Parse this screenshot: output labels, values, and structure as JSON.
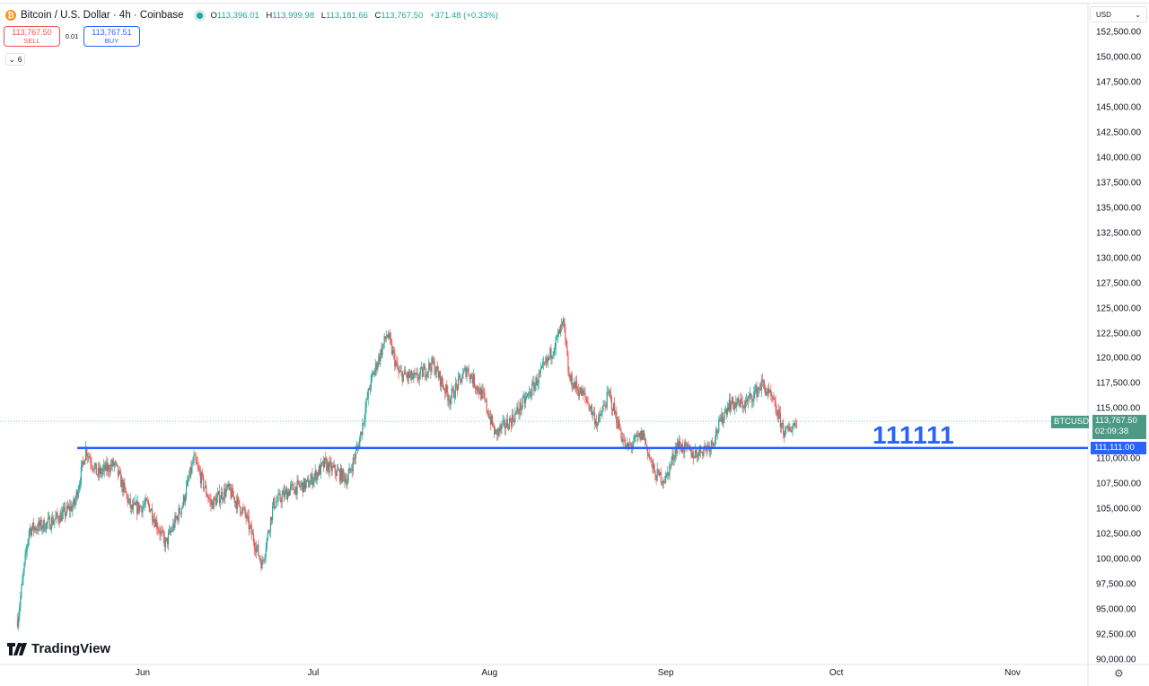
{
  "header": {
    "coin_icon": "bitcoin-icon",
    "symbol_title": "Bitcoin / U.S. Dollar · 4h · Coinbase",
    "ohlc": {
      "o_label": "O",
      "o": "113,396.01",
      "h_label": "H",
      "h": "113,999.98",
      "l_label": "L",
      "l": "113,181.66",
      "c_label": "C",
      "c": "113,767.50",
      "change": "+371.48 (+0.33%)"
    }
  },
  "trade": {
    "sell_price": "113,767.50",
    "sell_label": "SELL",
    "spread": "0.01",
    "buy_price": "113,767.51",
    "buy_label": "BUY"
  },
  "indicators_toggle": {
    "count": "6"
  },
  "currency": {
    "label": "USD"
  },
  "price_tag": {
    "symbol": "BTCUSD",
    "price": "113,767.50",
    "countdown": "02:09:38"
  },
  "line_tag": {
    "price": "111,111.00"
  },
  "annotation": {
    "text": "111111"
  },
  "brand": {
    "name": "TradingView"
  },
  "colors": {
    "up": "#26a69a",
    "down": "#ef5350",
    "horizontal_line": "#2962ff",
    "tag_green": "#4c9a86"
  },
  "chart_data": {
    "type": "candlestick",
    "timeframe": "4h",
    "ylim": [
      90000,
      152500
    ],
    "y_ticks": [
      "152,500.00",
      "150,000.00",
      "147,500.00",
      "145,000.00",
      "142,500.00",
      "140,000.00",
      "137,500.00",
      "135,000.00",
      "132,500.00",
      "130,000.00",
      "127,500.00",
      "125,000.00",
      "122,500.00",
      "120,000.00",
      "117,500.00",
      "115,000.00",
      "112,500.00",
      "110,000.00",
      "107,500.00",
      "105,000.00",
      "102,500.00",
      "100,000.00",
      "97,500.00",
      "95,000.00",
      "92,500.00",
      "90,000.00"
    ],
    "x_ticks": [
      "Jun",
      "Jul",
      "Aug",
      "Sep",
      "Oct",
      "Nov"
    ],
    "horizontal_line": 111111,
    "last_price": 113767.5,
    "approx_close_path": [
      [
        "2025-05-10",
        94000
      ],
      [
        "2025-05-12",
        103000
      ],
      [
        "2025-05-15",
        103500
      ],
      [
        "2025-05-18",
        104500
      ],
      [
        "2025-05-20",
        105500
      ],
      [
        "2025-05-22",
        111000
      ],
      [
        "2025-05-24",
        108500
      ],
      [
        "2025-05-27",
        109500
      ],
      [
        "2025-05-30",
        105000
      ],
      [
        "2025-06-02",
        105500
      ],
      [
        "2025-06-05",
        101500
      ],
      [
        "2025-06-08",
        105500
      ],
      [
        "2025-06-10",
        110000
      ],
      [
        "2025-06-13",
        105500
      ],
      [
        "2025-06-16",
        107000
      ],
      [
        "2025-06-19",
        104500
      ],
      [
        "2025-06-22",
        99500
      ],
      [
        "2025-06-24",
        105500
      ],
      [
        "2025-06-27",
        107000
      ],
      [
        "2025-06-30",
        107500
      ],
      [
        "2025-07-03",
        109500
      ],
      [
        "2025-07-07",
        108000
      ],
      [
        "2025-07-09",
        111500
      ],
      [
        "2025-07-11",
        117500
      ],
      [
        "2025-07-14",
        122500
      ],
      [
        "2025-07-16",
        118500
      ],
      [
        "2025-07-19",
        118000
      ],
      [
        "2025-07-22",
        119500
      ],
      [
        "2025-07-25",
        116000
      ],
      [
        "2025-07-28",
        119000
      ],
      [
        "2025-07-31",
        116000
      ],
      [
        "2025-08-02",
        112500
      ],
      [
        "2025-08-05",
        114000
      ],
      [
        "2025-08-08",
        116500
      ],
      [
        "2025-08-11",
        119500
      ],
      [
        "2025-08-14",
        123500
      ],
      [
        "2025-08-15",
        118000
      ],
      [
        "2025-08-18",
        116000
      ],
      [
        "2025-08-20",
        113500
      ],
      [
        "2025-08-22",
        116500
      ],
      [
        "2025-08-25",
        111000
      ],
      [
        "2025-08-28",
        112500
      ],
      [
        "2025-08-30",
        108500
      ],
      [
        "2025-09-01",
        108000
      ],
      [
        "2025-09-03",
        111500
      ],
      [
        "2025-09-06",
        110500
      ],
      [
        "2025-09-09",
        111500
      ],
      [
        "2025-09-12",
        115500
      ],
      [
        "2025-09-15",
        115500
      ],
      [
        "2025-09-18",
        117500
      ],
      [
        "2025-09-20",
        115500
      ],
      [
        "2025-09-22",
        112500
      ],
      [
        "2025-09-24",
        113767.5
      ]
    ]
  }
}
